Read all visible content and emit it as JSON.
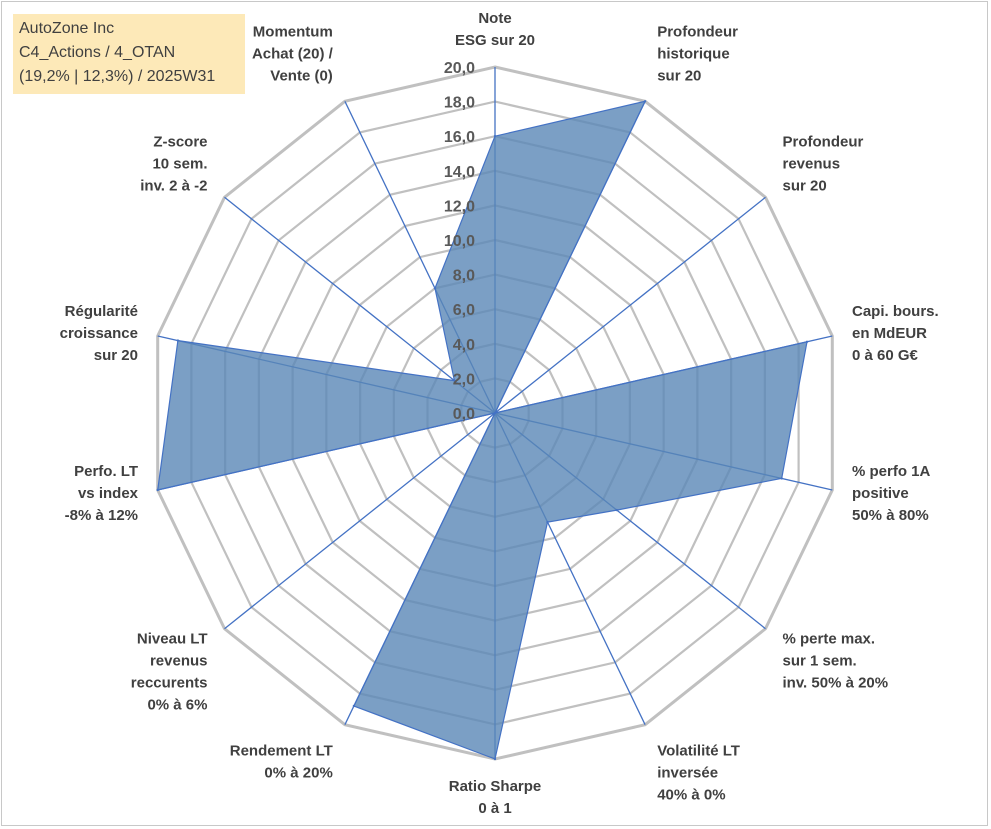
{
  "title_box": {
    "line1": "AutoZone Inc",
    "line2": "C4_Actions / 4_OTAN",
    "line3": "(19,2% | 12,3%) / 2025W31"
  },
  "colors": {
    "fill": "#5a87b7",
    "stroke": "#4472c4",
    "grid": "#c0c0c0",
    "spoke": "#4472c4",
    "title_bg": "#fde9b8"
  },
  "chart_data": {
    "type": "radar",
    "rmin": 0,
    "rmax": 20,
    "tick_step": 2,
    "tick_labels": [
      "0,0",
      "2,0",
      "4,0",
      "6,0",
      "8,0",
      "10,0",
      "12,0",
      "14,0",
      "16,0",
      "18,0",
      "20,0"
    ],
    "axes": [
      {
        "label": [
          "Note",
          "ESG sur 20"
        ],
        "value": 16.0
      },
      {
        "label": [
          "Profondeur",
          "historique",
          "sur 20"
        ],
        "value": 20.0
      },
      {
        "label": [
          "Profondeur",
          "revenus",
          "sur 20"
        ],
        "value": 0.0
      },
      {
        "label": [
          "Capi. bours.",
          "en MdEUR",
          "0 à 60 G€"
        ],
        "value": 18.5
      },
      {
        "label": [
          "% perfo 1A",
          "positive",
          "50% à 80%"
        ],
        "value": 17.0
      },
      {
        "label": [
          "% perte max.",
          "sur 1 sem.",
          "inv. 50% à 20%"
        ],
        "value": 9.0
      },
      {
        "label": [
          "Volatilité LT",
          "inversée",
          "40% à 0%"
        ],
        "value": 7.0
      },
      {
        "label": [
          "Ratio Sharpe",
          "0 à 1"
        ],
        "value": 20.0
      },
      {
        "label": [
          "Rendement LT",
          "0% à 20%"
        ],
        "value": 18.8
      },
      {
        "label": [
          "Niveau LT",
          "revenus",
          "reccurents",
          "0% à 6%"
        ],
        "value": 0.0
      },
      {
        "label": [
          "Perfo. LT",
          "vs index",
          "-8% à 12%"
        ],
        "value": 20.0
      },
      {
        "label": [
          "Régularité",
          "croissance",
          "sur 20"
        ],
        "value": 18.8
      },
      {
        "label": [
          "Z-score",
          "10 sem.",
          "inv. 2 à -2"
        ],
        "value": 3.0
      },
      {
        "label": [
          "Momentum",
          "Achat (20) /",
          "Vente (0)"
        ],
        "value": 8.0
      }
    ]
  }
}
